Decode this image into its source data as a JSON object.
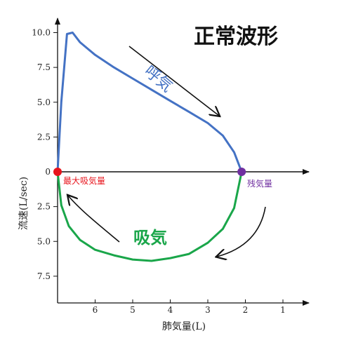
{
  "chart_data": {
    "type": "line",
    "title": "正常波形",
    "xlabel": "肺気量(L)",
    "ylabel": "流速(L/sec)",
    "x_ticks": [
      6,
      5,
      4,
      3,
      2,
      1
    ],
    "x_ticks_labels": [
      "6",
      "5",
      "4",
      "3",
      "2",
      "1"
    ],
    "y_ticks_positive": [
      "10.0",
      "7.5",
      "5.0",
      "2.5"
    ],
    "y_tick_zero": "0",
    "y_ticks_negative": [
      "2.5",
      "5.0",
      "7.5"
    ],
    "xlim": [
      7,
      0.4
    ],
    "ylim": [
      -10,
      10.5
    ],
    "grid": false,
    "series": [
      {
        "name": "呼気",
        "color": "#4472c4",
        "x": [
          7.0,
          6.9,
          6.75,
          6.6,
          6.4,
          6.0,
          5.5,
          5.0,
          4.5,
          4.0,
          3.5,
          3.0,
          2.6,
          2.3,
          2.1
        ],
        "y": [
          0.0,
          5.0,
          9.9,
          10.0,
          9.3,
          8.4,
          7.5,
          6.7,
          5.9,
          5.1,
          4.3,
          3.5,
          2.6,
          1.4,
          0.0
        ]
      },
      {
        "name": "吸気",
        "color": "#1aa64a",
        "x": [
          7.0,
          6.9,
          6.7,
          6.4,
          6.0,
          5.5,
          5.0,
          4.5,
          4.0,
          3.5,
          3.0,
          2.6,
          2.3,
          2.1
        ],
        "y": [
          0.0,
          -2.4,
          -3.9,
          -4.9,
          -5.6,
          -6.0,
          -6.3,
          -6.4,
          -6.2,
          -5.9,
          -5.1,
          -4.1,
          -2.6,
          0.0
        ]
      }
    ],
    "points": [
      {
        "label": "最大吸気量",
        "x": 7.0,
        "y": 0.0,
        "color": "#e8141c"
      },
      {
        "label": "残気量",
        "x": 2.1,
        "y": 0.0,
        "color": "#7030a0"
      }
    ],
    "annotations": {
      "expiration": "呼気",
      "inspiration": "吸気"
    }
  }
}
